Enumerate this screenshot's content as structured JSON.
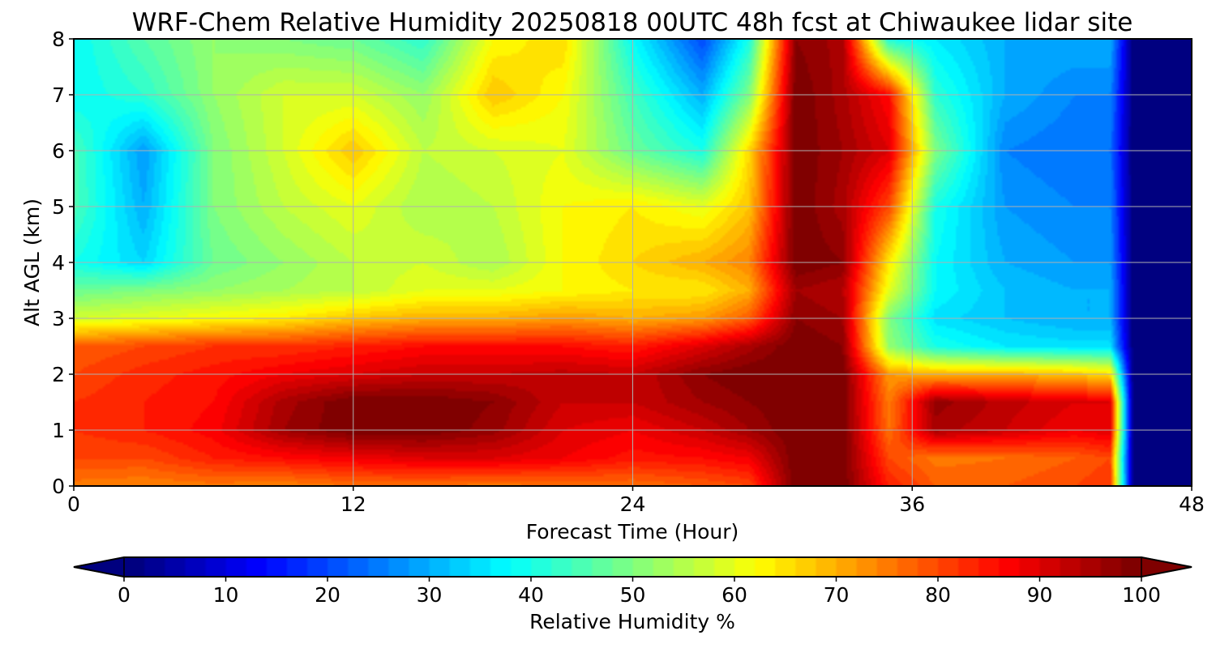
{
  "chart_data": {
    "type": "heatmap",
    "title": "WRF-Chem Relative Humidity 20250818 00UTC 48h fcst at Chiwaukee lidar site",
    "xlabel": "Forecast Time (Hour)",
    "ylabel": "Alt AGL (km)",
    "xlim": [
      0,
      48
    ],
    "ylim": [
      0,
      8
    ],
    "x_ticks": [
      "0",
      "12",
      "24",
      "36",
      "48"
    ],
    "y_ticks": [
      "0",
      "1",
      "2",
      "3",
      "4",
      "5",
      "6",
      "7",
      "8"
    ],
    "grid": true,
    "x": [
      0,
      3,
      6,
      9,
      12,
      15,
      18,
      21,
      24,
      27,
      29,
      31,
      33,
      35,
      37,
      40,
      43,
      44.5,
      45.5,
      48
    ],
    "y": [
      0,
      0.5,
      1,
      1.5,
      2,
      2.5,
      3,
      3.5,
      4,
      5,
      6,
      7,
      8
    ],
    "z": [
      [
        75,
        74,
        75,
        74,
        76,
        76,
        75,
        76,
        76,
        78,
        80,
        100,
        100,
        84,
        78,
        78,
        80,
        82,
        0,
        0
      ],
      [
        80,
        80,
        84,
        86,
        88,
        90,
        90,
        88,
        85,
        86,
        88,
        100,
        100,
        80,
        75,
        76,
        78,
        80,
        0,
        0
      ],
      [
        82,
        84,
        87,
        96,
        100,
        100,
        97,
        90,
        88,
        92,
        96,
        100,
        100,
        76,
        95,
        92,
        88,
        90,
        0,
        0
      ],
      [
        82,
        84,
        86,
        95,
        100,
        100,
        98,
        92,
        92,
        96,
        98,
        100,
        100,
        75,
        97,
        93,
        90,
        90,
        0,
        0
      ],
      [
        80,
        83,
        85,
        88,
        90,
        92,
        92,
        93,
        92,
        98,
        100,
        100,
        100,
        72,
        70,
        70,
        68,
        65,
        0,
        0
      ],
      [
        78,
        80,
        82,
        82,
        84,
        86,
        86,
        86,
        84,
        90,
        95,
        100,
        98,
        52,
        40,
        36,
        35,
        35,
        0,
        0
      ],
      [
        58,
        60,
        62,
        64,
        68,
        70,
        70,
        72,
        70,
        72,
        78,
        98,
        96,
        50,
        35,
        32,
        30,
        30,
        0,
        0
      ],
      [
        48,
        50,
        52,
        54,
        56,
        60,
        60,
        62,
        64,
        64,
        70,
        96,
        94,
        60,
        38,
        32,
        30,
        30,
        0,
        0
      ],
      [
        40,
        34,
        48,
        52,
        56,
        58,
        54,
        62,
        66,
        70,
        74,
        100,
        98,
        64,
        38,
        30,
        28,
        28,
        0,
        0
      ],
      [
        45,
        30,
        50,
        56,
        60,
        54,
        56,
        62,
        64,
        60,
        68,
        100,
        95,
        80,
        40,
        28,
        26,
        26,
        0,
        0
      ],
      [
        45,
        28,
        50,
        58,
        68,
        56,
        58,
        60,
        48,
        40,
        66,
        100,
        96,
        90,
        50,
        26,
        24,
        24,
        0,
        0
      ],
      [
        38,
        42,
        52,
        58,
        58,
        52,
        68,
        62,
        44,
        30,
        50,
        100,
        95,
        86,
        42,
        30,
        26,
        26,
        0,
        0
      ],
      [
        38,
        46,
        52,
        50,
        48,
        42,
        62,
        66,
        38,
        20,
        40,
        98,
        95,
        40,
        36,
        30,
        30,
        30,
        0,
        0
      ]
    ],
    "colorbar": {
      "label": "Relative Humidity %",
      "ticks": [
        "0",
        "10",
        "20",
        "30",
        "40",
        "50",
        "60",
        "70",
        "80",
        "90",
        "100"
      ],
      "range": [
        0,
        100
      ],
      "extend": "both",
      "colormap": "jet"
    }
  }
}
